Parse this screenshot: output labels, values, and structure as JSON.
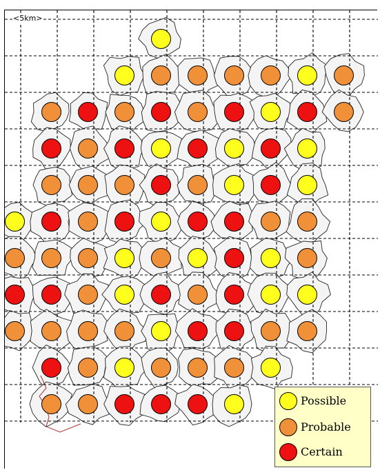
{
  "scale_label": "<5km>",
  "colors": {
    "possible": "#ffff1e",
    "probable": "#f09038",
    "certain": "#ee1111",
    "grid": "#000000",
    "boundary": "#222222",
    "outline_red": "#b03030",
    "legend_bg": "#ffffc8"
  },
  "legend": {
    "items": [
      {
        "label": "Possible",
        "status": "possible"
      },
      {
        "label": "Probable",
        "status": "probable"
      },
      {
        "label": "Certain",
        "status": "certain"
      }
    ]
  },
  "atlas": {
    "grid_columns": 10,
    "grid_rows": 11,
    "status_codes": {
      "Y": "possible",
      "O": "probable",
      "R": "certain"
    },
    "rows": [
      "....Y.....",
      "...YOOOOYO",
      ".ORORORYRO",
      ".RORYRYRY",
      ".OOOROYRY",
      "YRORYRROO",
      "OOOYOYRYO",
      "RROYRORYY",
      "OOOOYRROO",
      ".ROYOOOY",
      ".OORRRY"
    ]
  }
}
